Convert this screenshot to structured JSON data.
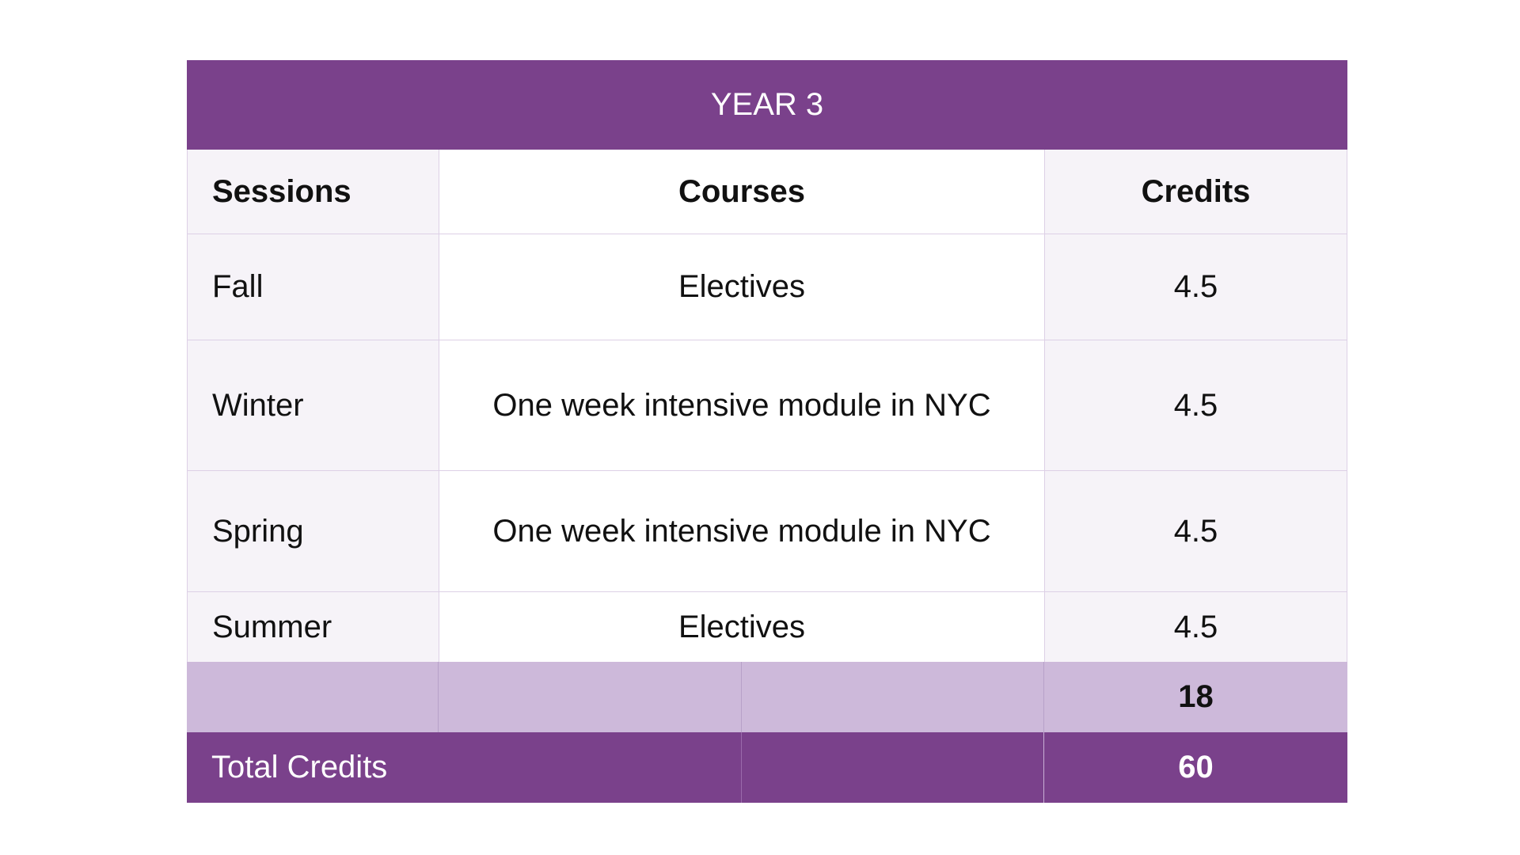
{
  "table": {
    "title": "YEAR 3",
    "headers": {
      "sessions": "Sessions",
      "courses": "Courses",
      "credits": "Credits"
    },
    "rows": [
      {
        "session": "Fall",
        "course": "Electives",
        "credits": "4.5"
      },
      {
        "session": "Winter",
        "course": "One week intensive module in NYC",
        "credits": "4.5"
      },
      {
        "session": "Spring",
        "course": "One week intensive module in NYC",
        "credits": "4.5"
      },
      {
        "session": "Summer",
        "course": "Electives",
        "credits": "4.5"
      }
    ],
    "subtotal": "18",
    "total_label": "Total Credits",
    "total_value": "60"
  },
  "colors": {
    "header_purple": "#7a418b",
    "subtotal_lavender": "#cdb9da",
    "light_cell": "#f6f3f8",
    "text": "#111111"
  }
}
